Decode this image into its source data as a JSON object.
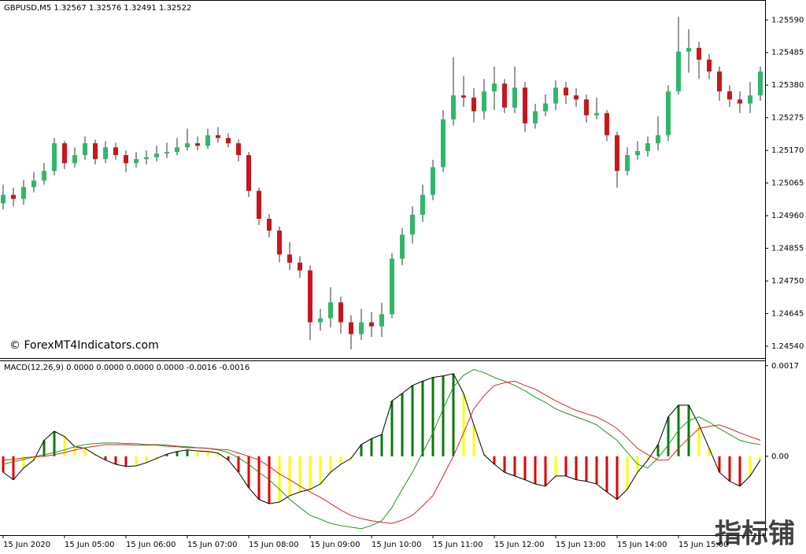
{
  "chart_data": [
    {
      "type": "candlestick",
      "title": "GBPUSD,M5  1.32567 1.32576 1.32491 1.32522",
      "annotation": "© ForexMT4Indicators.com",
      "up_color": "#2fb86a",
      "down_color": "#c8161d",
      "wick_color": "#333333",
      "ylim": [
        1.24502,
        1.25654
      ],
      "yticks": [
        {
          "value": 1.2559,
          "label": "1.25590"
        },
        1.25485,
        {
          "value": 1.2538,
          "label": "1.25380"
        },
        1.25275,
        {
          "value": 1.2517,
          "label": "1.25170"
        },
        1.25065,
        {
          "value": 1.2496,
          "label": "1.24960"
        },
        1.24855,
        {
          "value": 1.2475,
          "label": "1.24750"
        },
        1.24645,
        {
          "value": 1.2454,
          "label": "1.24540"
        }
      ],
      "open": [
        1.25,
        1.25027,
        1.25014,
        1.25052,
        1.25073,
        1.25104,
        1.25193,
        1.25129,
        1.25155,
        1.25193,
        1.25142,
        1.2518,
        1.25155,
        1.25129,
        1.25142,
        1.25148,
        1.2516,
        1.25165,
        1.2518,
        1.25193,
        1.25185,
        1.25219,
        1.2521,
        1.25193,
        1.25155,
        1.2504,
        1.2495,
        1.24912,
        1.24835,
        1.24809,
        1.24784,
        1.24617,
        1.2463,
        1.24681,
        1.24617,
        1.24579,
        1.24617,
        1.24604,
        1.24643,
        1.24822,
        1.24899,
        1.24963,
        1.25027,
        1.25116,
        1.2527,
        1.25347,
        1.2534,
        1.25296,
        1.2536,
        1.25385,
        1.25308,
        1.25372,
        1.25257,
        1.25296,
        1.25321,
        1.25372,
        1.25347,
        1.25334,
        1.25283,
        1.2529,
        1.25219,
        1.25104,
        1.25155,
        1.25168,
        1.25193,
        1.25219,
        1.2536,
        1.25488,
        1.255,
        1.25462,
        1.25424,
        1.2536,
        1.25334,
        1.25321,
        1.25347
      ],
      "high": [
        1.2506,
        1.2505,
        1.25075,
        1.251,
        1.2513,
        1.2521,
        1.252,
        1.2518,
        1.25215,
        1.25205,
        1.252,
        1.25195,
        1.2517,
        1.25165,
        1.2517,
        1.25185,
        1.25195,
        1.2521,
        1.2524,
        1.25215,
        1.2524,
        1.25245,
        1.25225,
        1.25205,
        1.25165,
        1.2505,
        1.24965,
        1.24925,
        1.24875,
        1.2483,
        1.248,
        1.2466,
        1.2473,
        1.247,
        1.2464,
        1.2466,
        1.2465,
        1.2468,
        1.2484,
        1.2492,
        1.2499,
        1.2506,
        1.2514,
        1.253,
        1.2547,
        1.2541,
        1.2537,
        1.254,
        1.2544,
        1.254,
        1.2544,
        1.2539,
        1.2532,
        1.2535,
        1.25395,
        1.2539,
        1.2537,
        1.2535,
        1.2534,
        1.253,
        1.2523,
        1.2518,
        1.252,
        1.25215,
        1.2528,
        1.2538,
        1.256,
        1.2556,
        1.2552,
        1.2548,
        1.2544,
        1.2538,
        1.2536,
        1.2539,
        1.2544
      ],
      "low": [
        1.2498,
        1.2499,
        1.24995,
        1.25035,
        1.2506,
        1.2509,
        1.2511,
        1.25115,
        1.2514,
        1.25125,
        1.2513,
        1.2514,
        1.251,
        1.25115,
        1.25125,
        1.25135,
        1.25145,
        1.25155,
        1.2517,
        1.2517,
        1.25175,
        1.25195,
        1.2518,
        1.25135,
        1.2502,
        1.2493,
        1.2489,
        1.2481,
        1.24785,
        1.2476,
        1.2456,
        1.2459,
        1.246,
        1.2458,
        1.2453,
        1.2456,
        1.2457,
        1.2457,
        1.2463,
        1.248,
        1.2487,
        1.2494,
        1.2501,
        1.251,
        1.2525,
        1.2531,
        1.2526,
        1.2527,
        1.253,
        1.2529,
        1.2529,
        1.2523,
        1.2524,
        1.2528,
        1.253,
        1.2532,
        1.2531,
        1.2526,
        1.2527,
        1.252,
        1.2505,
        1.2509,
        1.2514,
        1.2515,
        1.2517,
        1.252,
        1.2535,
        1.2542,
        1.254,
        1.254,
        1.2533,
        1.2531,
        1.2529,
        1.2529,
        1.2533
      ],
      "close": [
        1.25027,
        1.25014,
        1.25052,
        1.25073,
        1.25104,
        1.25193,
        1.25129,
        1.25155,
        1.25193,
        1.25142,
        1.2518,
        1.25155,
        1.25129,
        1.25142,
        1.25148,
        1.2516,
        1.25165,
        1.2518,
        1.25193,
        1.25185,
        1.25219,
        1.2521,
        1.25193,
        1.25155,
        1.2504,
        1.2495,
        1.24912,
        1.24835,
        1.24809,
        1.24784,
        1.24617,
        1.2463,
        1.24681,
        1.24617,
        1.24579,
        1.24617,
        1.24604,
        1.24643,
        1.24822,
        1.24899,
        1.24963,
        1.25027,
        1.25116,
        1.2527,
        1.25347,
        1.2534,
        1.25296,
        1.2536,
        1.25385,
        1.25308,
        1.25372,
        1.25257,
        1.25296,
        1.25321,
        1.25372,
        1.25347,
        1.25334,
        1.25283,
        1.2529,
        1.25219,
        1.25104,
        1.25155,
        1.25168,
        1.25193,
        1.25219,
        1.2536,
        1.25488,
        1.255,
        1.25462,
        1.25424,
        1.2536,
        1.25334,
        1.25321,
        1.25347,
        1.25424
      ]
    },
    {
      "type": "macd",
      "title": "MACD(12,26,9) 0.0000 0.0000 0.0000 0.0000 -0.0016 -0.0016",
      "annotation": "指标铺",
      "ylim": [
        -0.00148,
        0.0018
      ],
      "yticks": [
        0.0017,
        {
          "value": 0,
          "label": "0.00"
        }
      ],
      "xticks": [
        {
          "value": 0,
          "label": "15 Jun 2020"
        },
        {
          "value": 6,
          "label": "15 Jun 05:00"
        },
        {
          "value": 12,
          "label": "15 Jun 06:00"
        },
        {
          "value": 18,
          "label": "15 Jun 07:00"
        },
        {
          "value": 24,
          "label": "15 Jun 08:00"
        },
        {
          "value": 30,
          "label": "15 Jun 09:00"
        },
        {
          "value": 36,
          "label": "15 Jun 10:00"
        },
        {
          "value": 42,
          "label": "15 Jun 11:00"
        },
        {
          "value": 48,
          "label": "15 Jun 12:00"
        },
        {
          "value": 54,
          "label": "15 Jun 13:00"
        },
        {
          "value": 60,
          "label": "15 Jun 14:00"
        },
        {
          "value": 66,
          "label": "15 Jun 15:00"
        }
      ],
      "histogram_colors": {
        "rising_positive": "#0b7a0b",
        "falling_positive": "#ffff00",
        "falling_negative": "#e00000",
        "rising_negative": "#ffff00"
      },
      "histogram": [
        -0.0003,
        -0.00044,
        -0.00022,
        -7e-05,
        0.0003,
        0.00047,
        0.00037,
        0.00018,
        0.00015,
        3e-05,
        -7e-05,
        -0.00015,
        -0.00019,
        -0.00018,
        -0.00012,
        -4e-05,
        4e-05,
        9e-05,
        0.00012,
        0.0001,
        9e-05,
        6e-05,
        -7e-05,
        -0.0003,
        -0.00059,
        -0.00081,
        -0.00089,
        -0.00086,
        -0.00074,
        -0.00067,
        -0.00062,
        -0.00052,
        -0.0003,
        -0.00015,
        -4e-05,
        0.00022,
        0.00033,
        0.00041,
        0.00104,
        0.00118,
        0.00133,
        0.00141,
        0.00148,
        0.00151,
        0.00155,
        0.00118,
        0.00059,
        3e-05,
        -0.00015,
        -0.0003,
        -0.00037,
        -0.00044,
        -0.00052,
        -0.00056,
        -0.00037,
        -0.00037,
        -0.00044,
        -0.00047,
        -0.00052,
        -0.00067,
        -0.00081,
        -0.00062,
        -0.0003,
        -7e-05,
        0.00022,
        0.00074,
        0.00096,
        0.00096,
        0.00059,
        0.00015,
        -0.0003,
        -0.00047,
        -0.00056,
        -0.00037,
        -7e-05
      ],
      "series": [
        {
          "color": "#1a9a1a",
          "values": [
            -0.00015,
            -0.0001,
            -6e-05,
            -1e-05,
            3e-05,
            7e-05,
            0.00012,
            0.00018,
            0.00022,
            0.00024,
            0.00025,
            0.00025,
            0.00024,
            0.00024,
            0.00022,
            0.00022,
            0.00021,
            0.00019,
            0.00018,
            0.00016,
            0.00015,
            0.00012,
            7e-05,
            -3e-05,
            -0.00015,
            -0.0003,
            -0.00044,
            -0.00062,
            -0.00081,
            -0.00096,
            -0.00111,
            -0.00118,
            -0.00126,
            -0.0013,
            -0.00133,
            -0.00136,
            -0.0013,
            -0.00121,
            -0.00096,
            -0.00062,
            -0.0003,
            7e-05,
            0.00044,
            0.00089,
            0.0013,
            0.00152,
            0.00163,
            0.00157,
            0.00148,
            0.00141,
            0.00133,
            0.00123,
            0.00111,
            0.00101,
            0.00089,
            0.00081,
            0.00074,
            0.00067,
            0.00059,
            0.00044,
            0.0003,
            7e-05,
            -0.00015,
            -0.00022,
            -3e-05,
            0.00021,
            0.00049,
            0.00067,
            0.00074,
            0.00064,
            0.00052,
            0.00041,
            0.0003,
            0.00025,
            0.00022
          ]
        },
        {
          "color": "#e02020",
          "values": [
            -7e-05,
            -6e-05,
            -3e-05,
            -1e-05,
            0,
            3e-05,
            7e-05,
            0.00012,
            0.00016,
            0.00019,
            0.00022,
            0.00022,
            0.00022,
            0.00021,
            0.00021,
            0.00021,
            0.00019,
            0.00018,
            0.00016,
            0.00016,
            0.00015,
            0.00013,
            0.00012,
            6e-05,
            0,
            -7e-05,
            -0.00019,
            -0.00033,
            -0.00044,
            -0.00056,
            -0.00067,
            -0.00077,
            -0.00089,
            -0.00101,
            -0.00111,
            -0.00117,
            -0.00121,
            -0.00124,
            -0.00126,
            -0.0012,
            -0.00111,
            -0.00093,
            -0.00074,
            -0.00037,
            0,
            0.00044,
            0.00089,
            0.00114,
            0.00133,
            0.00138,
            0.00141,
            0.00133,
            0.00126,
            0.00115,
            0.00104,
            0.00095,
            0.00086,
            0.0008,
            0.00074,
            0.00064,
            0.00052,
            0.00034,
            0.00015,
            3e-05,
            -7e-05,
            -7e-05,
            0.00015,
            0.00034,
            0.00052,
            0.00056,
            0.00059,
            0.00052,
            0.00044,
            0.00037,
            0.0003
          ]
        }
      ]
    }
  ]
}
